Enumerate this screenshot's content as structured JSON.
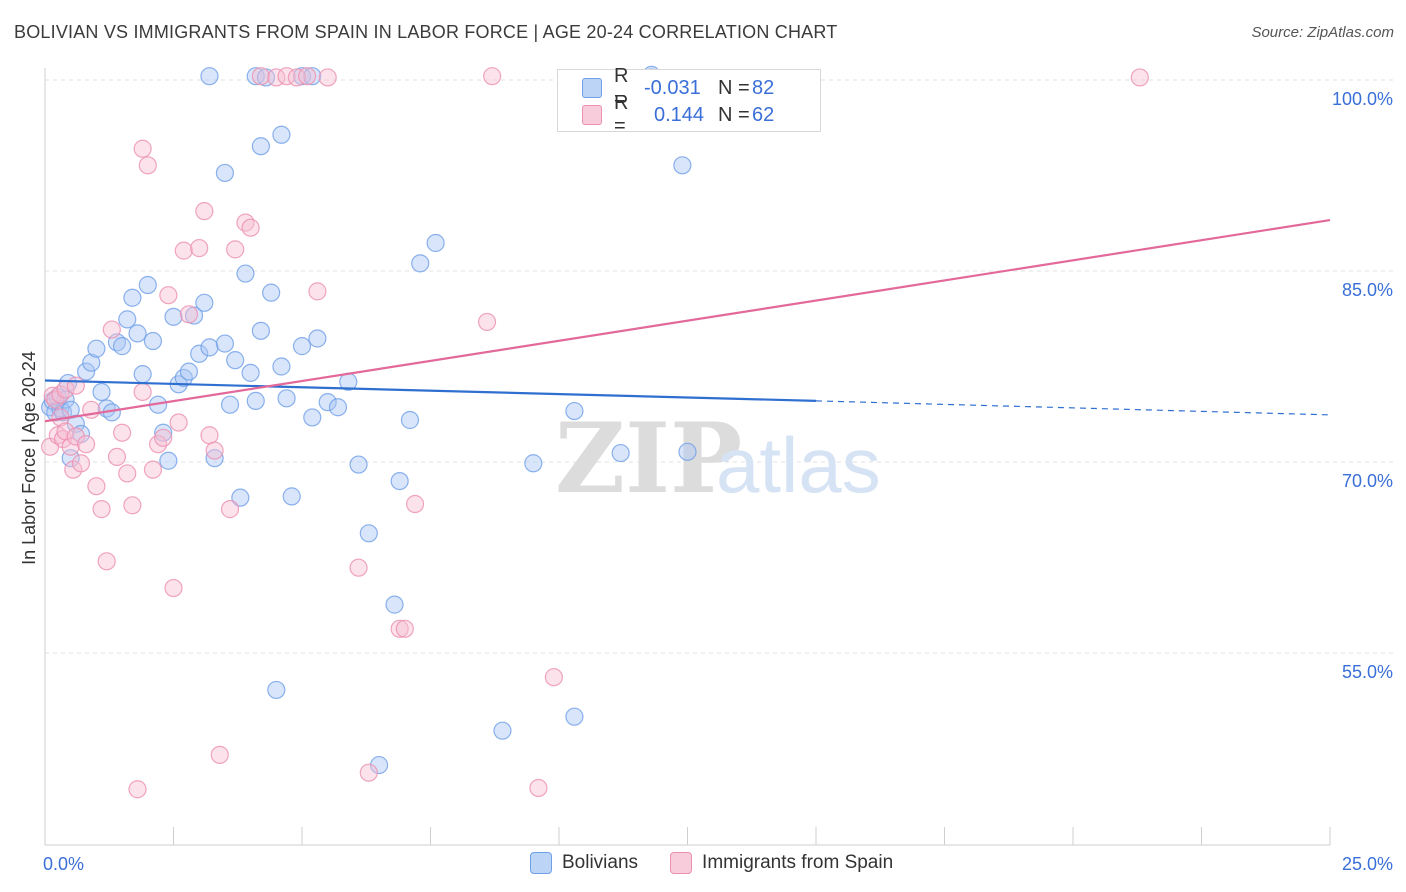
{
  "header": {
    "title": "BOLIVIAN VS IMMIGRANTS FROM SPAIN IN LABOR FORCE | AGE 20-24 CORRELATION CHART",
    "source": "Source: ZipAtlas.com"
  },
  "watermark": {
    "zip": "ZIP",
    "atlas": "atlas"
  },
  "legend": {
    "rows": [
      {
        "r_label": "R =",
        "r_value": "-0.031",
        "n_label": "N =",
        "n_value": "82"
      },
      {
        "r_label": "R =",
        "r_value": "0.144",
        "n_label": "N =",
        "n_value": "62"
      }
    ]
  },
  "chart_data": {
    "type": "scatter",
    "title": "BOLIVIAN VS IMMIGRANTS FROM SPAIN IN LABOR FORCE | AGE 20-24 CORRELATION CHART",
    "xlabel": "",
    "ylabel": "In Labor Force | Age 20-24",
    "xlim": [
      0,
      25
    ],
    "ylim": [
      40,
      102
    ],
    "x_tick_labels": [
      "0.0%",
      "25.0%"
    ],
    "y_ticks": [
      55,
      70,
      85,
      100
    ],
    "y_tick_labels": [
      "55.0%",
      "70.0%",
      "85.0%",
      "100.0%"
    ],
    "grid": true,
    "legend_position": "bottom-center",
    "series": [
      {
        "name": "Bolivians",
        "color": "#6f9fe8",
        "fill": "#a9c6f3",
        "trend": {
          "x0": 0,
          "y0": 76.4,
          "x1": 15,
          "y1": 74.8,
          "dashed_to_x": 25,
          "dashed_to_y": 73.7,
          "color": "#2f6fd0"
        },
        "points": [
          [
            0.1,
            74.3
          ],
          [
            0.15,
            74.8
          ],
          [
            0.2,
            73.9
          ],
          [
            0.25,
            75.1
          ],
          [
            0.3,
            74.2
          ],
          [
            0.35,
            73.9
          ],
          [
            0.4,
            74.9
          ],
          [
            0.45,
            76.2
          ],
          [
            0.5,
            74.1
          ],
          [
            0.6,
            73.0
          ],
          [
            0.7,
            72.2
          ],
          [
            0.5,
            70.3
          ],
          [
            0.8,
            77.1
          ],
          [
            0.9,
            77.8
          ],
          [
            1.0,
            78.9
          ],
          [
            1.1,
            75.5
          ],
          [
            1.2,
            74.2
          ],
          [
            1.3,
            73.9
          ],
          [
            1.4,
            79.4
          ],
          [
            1.5,
            79.1
          ],
          [
            1.6,
            81.2
          ],
          [
            1.7,
            82.9
          ],
          [
            1.8,
            80.1
          ],
          [
            1.9,
            76.9
          ],
          [
            2.0,
            83.9
          ],
          [
            2.1,
            79.5
          ],
          [
            2.2,
            74.5
          ],
          [
            2.3,
            72.3
          ],
          [
            2.4,
            70.1
          ],
          [
            2.5,
            81.4
          ],
          [
            2.6,
            76.1
          ],
          [
            2.7,
            76.6
          ],
          [
            2.8,
            77.1
          ],
          [
            2.9,
            81.5
          ],
          [
            3.0,
            78.5
          ],
          [
            3.1,
            82.5
          ],
          [
            3.2,
            79.0
          ],
          [
            3.3,
            70.3
          ],
          [
            3.5,
            79.3
          ],
          [
            3.6,
            74.5
          ],
          [
            3.7,
            78.0
          ],
          [
            3.8,
            67.2
          ],
          [
            3.9,
            84.8
          ],
          [
            4.0,
            77.0
          ],
          [
            4.1,
            74.8
          ],
          [
            4.2,
            80.3
          ],
          [
            4.4,
            83.3
          ],
          [
            4.5,
            52.1
          ],
          [
            4.6,
            77.5
          ],
          [
            4.7,
            75.0
          ],
          [
            4.8,
            67.3
          ],
          [
            5.0,
            79.1
          ],
          [
            5.2,
            73.5
          ],
          [
            5.3,
            79.7
          ],
          [
            5.5,
            74.7
          ],
          [
            5.7,
            74.3
          ],
          [
            5.9,
            76.3
          ],
          [
            6.1,
            69.8
          ],
          [
            6.3,
            64.4
          ],
          [
            6.5,
            46.2
          ],
          [
            6.8,
            58.8
          ],
          [
            6.9,
            68.5
          ],
          [
            7.1,
            73.3
          ],
          [
            7.3,
            85.6
          ],
          [
            7.6,
            87.2
          ],
          [
            4.2,
            94.8
          ],
          [
            4.6,
            95.7
          ],
          [
            3.5,
            92.7
          ],
          [
            3.2,
            100.3
          ],
          [
            4.1,
            100.3
          ],
          [
            4.3,
            100.2
          ],
          [
            5.0,
            100.3
          ],
          [
            5.2,
            100.3
          ],
          [
            8.9,
            48.9
          ],
          [
            9.5,
            69.9
          ],
          [
            10.3,
            74.0
          ],
          [
            10.3,
            50.0
          ],
          [
            11.2,
            70.7
          ],
          [
            11.8,
            100.2
          ],
          [
            11.8,
            100.4
          ],
          [
            12.5,
            70.8
          ],
          [
            12.4,
            93.3
          ]
        ]
      },
      {
        "name": "Immigrants from Spain",
        "color": "#ec8fb0",
        "fill": "#f7bfd3",
        "trend": {
          "x0": 0,
          "y0": 73.2,
          "x1": 25,
          "y1": 89.0,
          "color": "#e2699a"
        },
        "points": [
          [
            0.1,
            71.2
          ],
          [
            0.15,
            75.2
          ],
          [
            0.2,
            74.9
          ],
          [
            0.25,
            72.1
          ],
          [
            0.3,
            73.5
          ],
          [
            0.35,
            71.8
          ],
          [
            0.4,
            72.4
          ],
          [
            0.5,
            71.2
          ],
          [
            0.55,
            69.4
          ],
          [
            0.6,
            72.0
          ],
          [
            0.7,
            69.9
          ],
          [
            0.8,
            71.4
          ],
          [
            0.9,
            74.1
          ],
          [
            1.0,
            68.1
          ],
          [
            1.1,
            66.3
          ],
          [
            1.2,
            62.2
          ],
          [
            1.3,
            80.4
          ],
          [
            1.4,
            70.4
          ],
          [
            1.5,
            72.3
          ],
          [
            1.6,
            69.1
          ],
          [
            1.7,
            66.6
          ],
          [
            1.8,
            44.3
          ],
          [
            1.9,
            94.6
          ],
          [
            2.0,
            93.3
          ],
          [
            2.1,
            69.4
          ],
          [
            2.2,
            71.4
          ],
          [
            2.3,
            71.9
          ],
          [
            2.4,
            83.1
          ],
          [
            2.5,
            60.1
          ],
          [
            2.6,
            73.1
          ],
          [
            2.7,
            86.6
          ],
          [
            2.8,
            81.6
          ],
          [
            3.0,
            86.8
          ],
          [
            3.1,
            89.7
          ],
          [
            3.2,
            72.1
          ],
          [
            3.3,
            70.9
          ],
          [
            3.4,
            47.0
          ],
          [
            3.6,
            66.3
          ],
          [
            3.7,
            86.7
          ],
          [
            3.9,
            88.8
          ],
          [
            4.0,
            88.4
          ],
          [
            4.2,
            100.3
          ],
          [
            4.5,
            100.2
          ],
          [
            4.7,
            100.3
          ],
          [
            4.9,
            100.2
          ],
          [
            5.1,
            100.3
          ],
          [
            5.3,
            83.4
          ],
          [
            5.5,
            100.2
          ],
          [
            6.1,
            61.7
          ],
          [
            6.3,
            45.6
          ],
          [
            6.9,
            56.9
          ],
          [
            7.0,
            56.9
          ],
          [
            7.2,
            66.7
          ],
          [
            8.6,
            81.0
          ],
          [
            8.7,
            100.3
          ],
          [
            0.3,
            75.3
          ],
          [
            0.4,
            75.7
          ],
          [
            0.6,
            76.0
          ],
          [
            1.9,
            75.5
          ],
          [
            9.6,
            44.4
          ],
          [
            9.9,
            53.1
          ],
          [
            21.3,
            100.2
          ]
        ]
      }
    ]
  }
}
